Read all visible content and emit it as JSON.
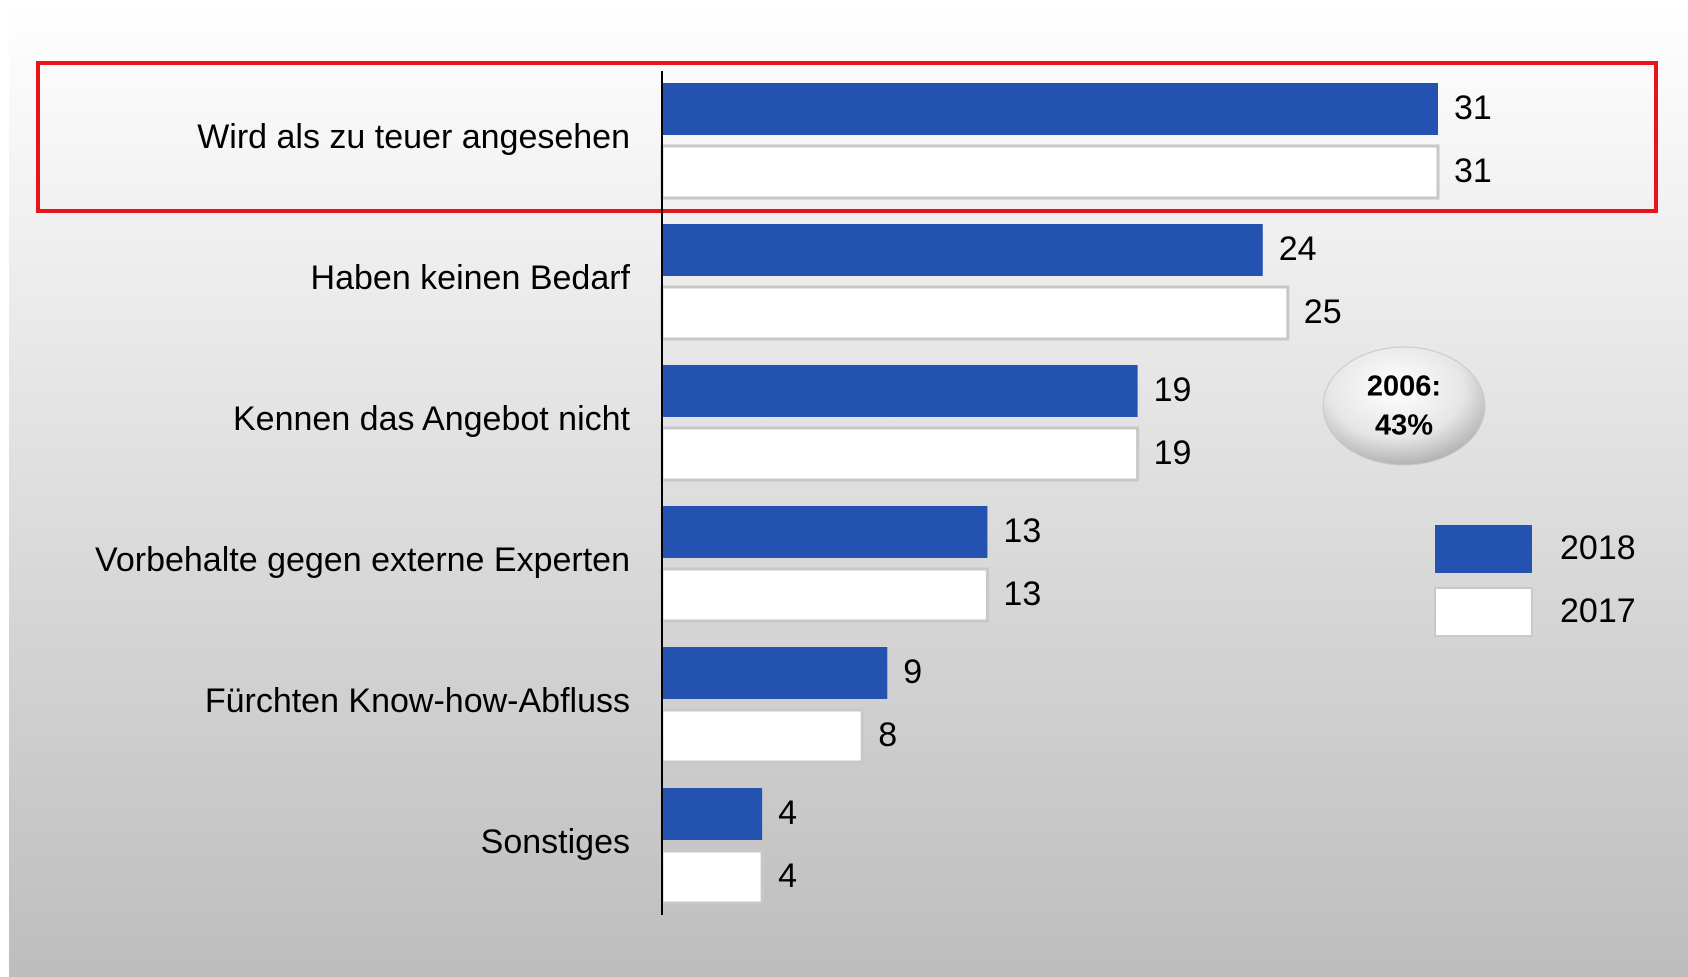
{
  "chart_data": {
    "type": "hbar",
    "categories": [
      "Wird als zu teuer angesehen",
      "Haben keinen Bedarf",
      "Kennen das Angebot nicht",
      "Vorbehalte gegen externe Experten",
      "Fürchten Know-how-Abfluss",
      "Sonstiges"
    ],
    "series": [
      {
        "name": "2018",
        "color": "#2452b0",
        "values": [
          31,
          24,
          19,
          13,
          9,
          4
        ]
      },
      {
        "name": "2017",
        "color": "#ffffff",
        "values": [
          31,
          25,
          19,
          13,
          8,
          4
        ]
      }
    ],
    "annotation": [
      "2006:",
      "43%"
    ],
    "legend": "right"
  }
}
